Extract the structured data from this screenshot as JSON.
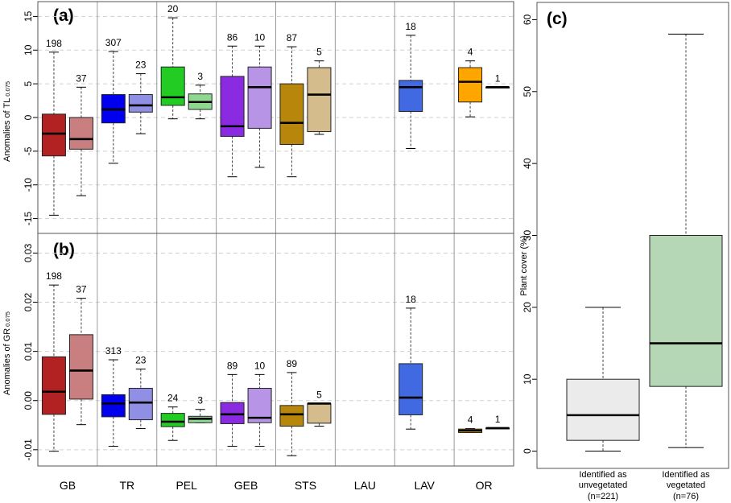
{
  "chart_data": [
    {
      "panel_label": "(a)",
      "type": "boxplot",
      "ylabel_main": "Anomalies of TL",
      "ylabel_sub": "0.075",
      "ylim": [
        -17.2,
        17.2
      ],
      "yticks": [
        15,
        10,
        5,
        0,
        -5,
        -10,
        -15
      ],
      "ytick_labels": [
        "15",
        "10",
        "5",
        "0",
        "-5",
        "-10",
        "-15"
      ],
      "grid": "dashed horizontal",
      "categories": [
        "GB",
        "TR",
        "PEL",
        "GEB",
        "STS",
        "LAU",
        "LAV",
        "OR"
      ],
      "boxes": [
        {
          "category": "GB",
          "sub": 0,
          "color": "#b22222",
          "n": "198",
          "whisker_low": -14.5,
          "q1": -5.7,
          "median": -2.4,
          "q3": 0.5,
          "whisker_high": 9.7
        },
        {
          "category": "GB",
          "sub": 1,
          "color": "#c97f80",
          "n": "37",
          "whisker_low": -11.6,
          "q1": -4.7,
          "median": -3.2,
          "q3": 0.0,
          "whisker_high": 4.5
        },
        {
          "category": "TR",
          "sub": 0,
          "color": "#0000ee",
          "n": "307",
          "whisker_low": -6.8,
          "q1": -0.8,
          "median": 1.2,
          "q3": 3.4,
          "whisker_high": 9.8
        },
        {
          "category": "TR",
          "sub": 1,
          "color": "#8f8fe6",
          "n": "23",
          "whisker_low": -2.4,
          "q1": 0.8,
          "median": 1.8,
          "q3": 3.4,
          "whisker_high": 6.5
        },
        {
          "category": "PEL",
          "sub": 0,
          "color": "#22cc22",
          "n": "20",
          "whisker_low": -0.2,
          "q1": 1.8,
          "median": 3.0,
          "q3": 7.5,
          "whisker_high": 14.8
        },
        {
          "category": "PEL",
          "sub": 1,
          "color": "#8fd88f",
          "n": "3",
          "whisker_low": -0.2,
          "q1": 1.2,
          "median": 2.3,
          "q3": 3.5,
          "whisker_high": 4.8
        },
        {
          "category": "GEB",
          "sub": 0,
          "color": "#8a2be2",
          "n": "86",
          "whisker_low": -8.8,
          "q1": -2.8,
          "median": -1.3,
          "q3": 6.1,
          "whisker_high": 10.6
        },
        {
          "category": "GEB",
          "sub": 1,
          "color": "#b894e6",
          "n": "10",
          "whisker_low": -7.4,
          "q1": -1.6,
          "median": 4.5,
          "q3": 7.5,
          "whisker_high": 10.6
        },
        {
          "category": "STS",
          "sub": 0,
          "color": "#b8860b",
          "n": "87",
          "whisker_low": -8.8,
          "q1": -4.0,
          "median": -0.8,
          "q3": 5.0,
          "whisker_high": 10.5
        },
        {
          "category": "STS",
          "sub": 1,
          "color": "#d4bc8c",
          "n": "5",
          "whisker_low": -2.5,
          "q1": -2.1,
          "median": 3.4,
          "q3": 7.4,
          "whisker_high": 8.4
        },
        {
          "category": "LAV",
          "sub": 0,
          "color": "#4169e1",
          "n": "18",
          "whisker_low": -4.6,
          "q1": 0.9,
          "median": 4.5,
          "q3": 5.5,
          "whisker_high": 12.2
        },
        {
          "category": "OR",
          "sub": 0,
          "color": "#ffa500",
          "n": "4",
          "whisker_low": 0.1,
          "q1": 2.3,
          "median": 5.3,
          "q3": 7.4,
          "whisker_high": 8.4
        },
        {
          "category": "OR",
          "sub": 1,
          "color": "#d9c08c",
          "n": "1",
          "whisker_low": 4.5,
          "q1": 4.5,
          "median": 4.5,
          "q3": 4.5,
          "whisker_high": 4.5
        }
      ]
    },
    {
      "panel_label": "(b)",
      "type": "boxplot",
      "ylabel_main": "Anomalies of GR",
      "ylabel_sub": "0.075",
      "ylim": [
        -0.0133,
        0.034
      ],
      "yticks": [
        0.03,
        0.02,
        0.01,
        0.0,
        -0.01
      ],
      "ytick_labels": [
        "0.03",
        "0.02",
        "0.01",
        "0.00",
        "-0.01"
      ],
      "grid": "dashed horizontal",
      "categories": [
        "GB",
        "TR",
        "PEL",
        "GEB",
        "STS",
        "LAU",
        "LAV",
        "OR"
      ],
      "boxes": [
        {
          "category": "GB",
          "sub": 0,
          "color": "#b22222",
          "n": "198",
          "whisker_low": -0.0103,
          "q1": -0.0028,
          "median": 0.0018,
          "q3": 0.0089,
          "whisker_high": 0.0235
        },
        {
          "category": "GB",
          "sub": 1,
          "color": "#c97f80",
          "n": "37",
          "whisker_low": -0.0049,
          "q1": 0.0003,
          "median": 0.0061,
          "q3": 0.0134,
          "whisker_high": 0.0208
        },
        {
          "category": "TR",
          "sub": 0,
          "color": "#0000ee",
          "n": "313",
          "whisker_low": -0.0093,
          "q1": -0.0033,
          "median": -0.0006,
          "q3": 0.0012,
          "whisker_high": 0.0083
        },
        {
          "category": "TR",
          "sub": 1,
          "color": "#8f8fe6",
          "n": "23",
          "whisker_low": -0.0057,
          "q1": -0.0039,
          "median": -0.0004,
          "q3": 0.0025,
          "whisker_high": 0.0064
        },
        {
          "category": "PEL",
          "sub": 0,
          "color": "#22cc22",
          "n": "24",
          "whisker_low": -0.0081,
          "q1": -0.0053,
          "median": -0.0043,
          "q3": -0.0026,
          "whisker_high": -0.0013
        },
        {
          "category": "PEL",
          "sub": 1,
          "color": "#8fd88f",
          "n": "3",
          "whisker_low": -0.0045,
          "q1": -0.0045,
          "median": -0.0037,
          "q3": -0.0032,
          "whisker_high": -0.0018
        },
        {
          "category": "GEB",
          "sub": 0,
          "color": "#8a2be2",
          "n": "89",
          "whisker_low": -0.0093,
          "q1": -0.0047,
          "median": -0.0028,
          "q3": -0.0004,
          "whisker_high": 0.0053
        },
        {
          "category": "GEB",
          "sub": 1,
          "color": "#b894e6",
          "n": "10",
          "whisker_low": -0.0093,
          "q1": -0.0045,
          "median": -0.0035,
          "q3": 0.0025,
          "whisker_high": 0.0053
        },
        {
          "category": "STS",
          "sub": 0,
          "color": "#b8860b",
          "n": "89",
          "whisker_low": -0.0112,
          "q1": -0.0052,
          "median": -0.0028,
          "q3": -0.001,
          "whisker_high": 0.0057
        },
        {
          "category": "STS",
          "sub": 1,
          "color": "#d4bc8c",
          "n": "5",
          "whisker_low": -0.0052,
          "q1": -0.0046,
          "median": -0.0006,
          "q3": -0.0006,
          "whisker_high": -0.0006
        },
        {
          "category": "LAV",
          "sub": 0,
          "color": "#4169e1",
          "n": "18",
          "whisker_low": -0.0058,
          "q1": -0.0029,
          "median": 0.0006,
          "q3": 0.0075,
          "whisker_high": 0.0188
        },
        {
          "category": "OR",
          "sub": 0,
          "color": "#ffa500",
          "n": "4",
          "whisker_low": -0.0065,
          "q1": -0.0065,
          "median": -0.0061,
          "q3": -0.0058,
          "whisker_high": -0.0057
        },
        {
          "category": "OR",
          "sub": 1,
          "color": "#d9c08c",
          "n": "1",
          "whisker_low": -0.0056,
          "q1": -0.0056,
          "median": -0.0056,
          "q3": -0.0056,
          "whisker_high": -0.0056
        }
      ]
    },
    {
      "panel_label": "(c)",
      "type": "boxplot",
      "ylabel": "Plant cover (%)",
      "ylim": [
        -2.4,
        62.4
      ],
      "yticks": [
        0,
        10,
        20,
        30,
        40,
        50,
        60
      ],
      "ytick_labels": [
        "0",
        "10",
        "20",
        "30",
        "40",
        "50",
        "60"
      ],
      "grid": "none",
      "categories": [
        {
          "line1": "Identified as",
          "line2": "unvegetated",
          "line3": "(n=221)"
        },
        {
          "line1": "Identified as",
          "line2": "vegetated",
          "line3": "(n=76)"
        }
      ],
      "boxes": [
        {
          "category": "unvegetated",
          "color": "#ebebeb",
          "whisker_low": 0.0,
          "q1": 1.5,
          "median": 5.0,
          "q3": 10.0,
          "whisker_high": 20.0
        },
        {
          "category": "vegetated",
          "color": "#b5d7b5",
          "whisker_low": 0.5,
          "q1": 9.0,
          "median": 15.0,
          "q3": 30.0,
          "whisker_high": 58.0
        }
      ]
    }
  ]
}
